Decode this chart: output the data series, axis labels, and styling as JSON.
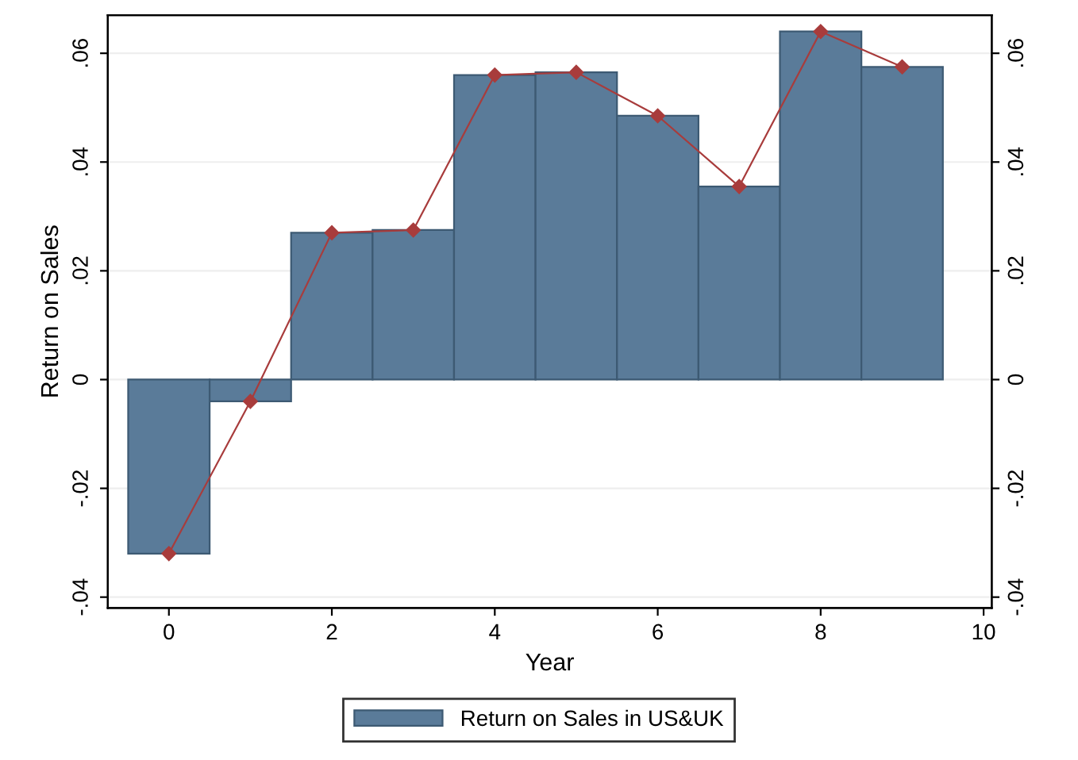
{
  "chart_data": {
    "type": "bar",
    "xlabel": "Year",
    "ylabel": "Return on Sales",
    "x": [
      0,
      1,
      2,
      3,
      4,
      5,
      6,
      7,
      8,
      9
    ],
    "series": [
      {
        "name": "Return on Sales in US&UK",
        "color": "#5a7b99",
        "values": [
          -0.032,
          -0.004,
          0.027,
          0.0275,
          0.056,
          0.0565,
          0.0485,
          0.0355,
          0.064,
          0.0575
        ]
      },
      {
        "type": "line",
        "color": "#a83c3c",
        "marker": "diamond",
        "values": [
          -0.032,
          -0.004,
          0.027,
          0.0275,
          0.056,
          0.0565,
          0.0485,
          0.0355,
          0.064,
          0.0575
        ]
      }
    ],
    "xlim": [
      -0.75,
      10.1
    ],
    "xticks": [
      0,
      2,
      4,
      6,
      8,
      10
    ],
    "ylim": [
      -0.042,
      0.067
    ],
    "yticks": [
      {
        "value": -0.04,
        "label": "-.04"
      },
      {
        "value": -0.02,
        "label": "-.02"
      },
      {
        "value": 0,
        "label": "0"
      },
      {
        "value": 0.02,
        "label": ".02"
      },
      {
        "value": 0.04,
        "label": ".04"
      },
      {
        "value": 0.06,
        "label": ".06"
      }
    ],
    "y2lim": [
      -0.042,
      0.067
    ],
    "y2ticks": [
      {
        "value": -0.04,
        "label": "-.04"
      },
      {
        "value": -0.02,
        "label": "-.02"
      },
      {
        "value": 0,
        "label": "0"
      },
      {
        "value": 0.02,
        "label": ".02"
      },
      {
        "value": 0.04,
        "label": ".04"
      },
      {
        "value": 0.06,
        "label": ".06"
      }
    ],
    "grid": "y",
    "legend": "bottom"
  }
}
